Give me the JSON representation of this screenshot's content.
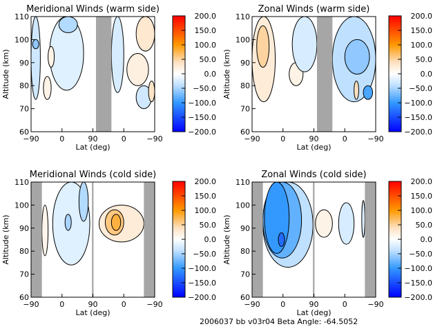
{
  "footer": {
    "text": "2006037 bb v03r04   Beta Angle: -64.5052"
  },
  "colorbar": {
    "stops": [
      {
        "value": 200,
        "color": "#ff0000"
      },
      {
        "value": 100,
        "color": "#ff9900"
      },
      {
        "value": 40,
        "color": "#fde0c0"
      },
      {
        "value": 0,
        "color": "#ffffff"
      },
      {
        "value": -40,
        "color": "#bfe0ff"
      },
      {
        "value": -100,
        "color": "#3399ff"
      },
      {
        "value": -200,
        "color": "#0000ff"
      }
    ],
    "tick_labels": [
      "200.0",
      "150.0",
      "100.0",
      "50.0",
      "0.0",
      "-50.0",
      "-100.0",
      "-150.0",
      "-200.0"
    ]
  },
  "chart_data": [
    {
      "type": "heatmap",
      "title": "Meridional Winds (warm side)",
      "xlabel": "Lat (deg)",
      "ylabel": "Altitude (km)",
      "x_tick_labels": [
        "-90",
        "0",
        "90",
        "0",
        "-90"
      ],
      "y_tick_labels": [
        "60",
        "70",
        "80",
        "90",
        "100",
        "110"
      ],
      "ylim": [
        60,
        110
      ],
      "colorbar_range": [
        -200,
        200
      ],
      "masked_x_ranges": [
        [
          2.1,
          2.6
        ]
      ],
      "regions": [
        {
          "x": [
            0.0,
            0.3
          ],
          "y": [
            74,
            110
          ],
          "value": -30
        },
        {
          "x": [
            0.05,
            0.25
          ],
          "y": [
            96,
            100
          ],
          "value": -60
        },
        {
          "x": [
            0.6,
            1.7
          ],
          "y": [
            78,
            110
          ],
          "value": -20
        },
        {
          "x": [
            0.9,
            1.5
          ],
          "y": [
            103,
            110
          ],
          "value": -45
        },
        {
          "x": [
            0.55,
            0.75
          ],
          "y": [
            88,
            97
          ],
          "value": 15
        },
        {
          "x": [
            0.4,
            0.65
          ],
          "y": [
            74,
            84
          ],
          "value": 15
        },
        {
          "x": [
            2.6,
            3.0
          ],
          "y": [
            77,
            110
          ],
          "value": -25
        },
        {
          "x": [
            3.4,
            4.0
          ],
          "y": [
            95,
            110
          ],
          "value": 30
        },
        {
          "x": [
            3.1,
            3.8
          ],
          "y": [
            80,
            94
          ],
          "value": 20
        },
        {
          "x": [
            3.4,
            3.9
          ],
          "y": [
            70,
            80
          ],
          "value": -30
        },
        {
          "x": [
            3.8,
            4.0
          ],
          "y": [
            73,
            82
          ],
          "value": 35
        }
      ]
    },
    {
      "type": "heatmap",
      "title": "Zonal Winds (warm side)",
      "xlabel": "Lat (deg)",
      "ylabel": "Altitude (km)",
      "x_tick_labels": [
        "-90",
        "0",
        "90",
        "0",
        "-90"
      ],
      "y_tick_labels": [
        "60",
        "70",
        "80",
        "90",
        "100",
        "110"
      ],
      "ylim": [
        60,
        110
      ],
      "colorbar_range": [
        -200,
        200
      ],
      "masked_x_ranges": [
        [
          2.1,
          2.6
        ]
      ],
      "regions": [
        {
          "x": [
            0.0,
            0.75
          ],
          "y": [
            73,
            110
          ],
          "value": 25
        },
        {
          "x": [
            0.15,
            0.55
          ],
          "y": [
            88,
            106
          ],
          "value": 50
        },
        {
          "x": [
            1.2,
            1.65
          ],
          "y": [
            80,
            90
          ],
          "value": 15
        },
        {
          "x": [
            1.3,
            2.1
          ],
          "y": [
            86,
            110
          ],
          "value": -25
        },
        {
          "x": [
            2.6,
            4.0
          ],
          "y": [
            73,
            110
          ],
          "value": -40
        },
        {
          "x": [
            3.0,
            3.8
          ],
          "y": [
            85,
            100
          ],
          "value": -60
        },
        {
          "x": [
            3.6,
            3.9
          ],
          "y": [
            74,
            80
          ],
          "value": -90
        },
        {
          "x": [
            3.3,
            3.45
          ],
          "y": [
            74,
            82
          ],
          "value": 40
        }
      ]
    },
    {
      "type": "heatmap",
      "title": "Meridional Winds (cold side)",
      "xlabel": "Lat (deg)",
      "ylabel": "Altitude (km)",
      "x_tick_labels": [
        "-90",
        "0",
        "90",
        "0",
        "-90"
      ],
      "y_tick_labels": [
        "60",
        "70",
        "80",
        "90",
        "100",
        "110"
      ],
      "ylim": [
        60,
        110
      ],
      "colorbar_range": [
        -200,
        200
      ],
      "masked_x_ranges": [
        [
          0.0,
          0.35
        ],
        [
          1.97,
          2.02
        ],
        [
          3.65,
          4.0
        ]
      ],
      "regions": [
        {
          "x": [
            0.7,
            1.9
          ],
          "y": [
            74,
            110
          ],
          "value": -20
        },
        {
          "x": [
            1.55,
            1.85
          ],
          "y": [
            93,
            110
          ],
          "value": -45
        },
        {
          "x": [
            1.1,
            1.3
          ],
          "y": [
            89,
            96
          ],
          "value": -50
        },
        {
          "x": [
            0.35,
            0.55
          ],
          "y": [
            78,
            100
          ],
          "value": 12
        },
        {
          "x": [
            2.2,
            3.65
          ],
          "y": [
            84,
            100
          ],
          "value": 25
        },
        {
          "x": [
            2.4,
            3.0
          ],
          "y": [
            87,
            98
          ],
          "value": 60
        },
        {
          "x": [
            2.6,
            2.9
          ],
          "y": [
            89,
            96
          ],
          "value": 80
        }
      ]
    },
    {
      "type": "heatmap",
      "title": "Zonal Winds (cold side)",
      "xlabel": "Lat (deg)",
      "ylabel": "Altitude (km)",
      "x_tick_labels": [
        "-90",
        "0",
        "90",
        "0",
        "-90"
      ],
      "y_tick_labels": [
        "60",
        "70",
        "80",
        "90",
        "100",
        "110"
      ],
      "ylim": [
        60,
        110
      ],
      "colorbar_range": [
        -200,
        200
      ],
      "masked_x_ranges": [
        [
          0.0,
          0.35
        ],
        [
          1.97,
          2.02
        ],
        [
          3.65,
          4.0
        ]
      ],
      "regions": [
        {
          "x": [
            0.35,
            1.97
          ],
          "y": [
            73,
            110
          ],
          "value": -40
        },
        {
          "x": [
            0.35,
            1.6
          ],
          "y": [
            77,
            110
          ],
          "value": -80
        },
        {
          "x": [
            0.4,
            1.2
          ],
          "y": [
            79,
            110
          ],
          "value": -100
        },
        {
          "x": [
            0.85,
            1.05
          ],
          "y": [
            82,
            88
          ],
          "value": -130
        },
        {
          "x": [
            2.05,
            2.6
          ],
          "y": [
            86,
            98
          ],
          "value": 15
        },
        {
          "x": [
            2.8,
            3.3
          ],
          "y": [
            83,
            101
          ],
          "value": -25
        },
        {
          "x": [
            3.55,
            3.65
          ],
          "y": [
            86,
            102
          ],
          "value": -20
        }
      ]
    }
  ]
}
